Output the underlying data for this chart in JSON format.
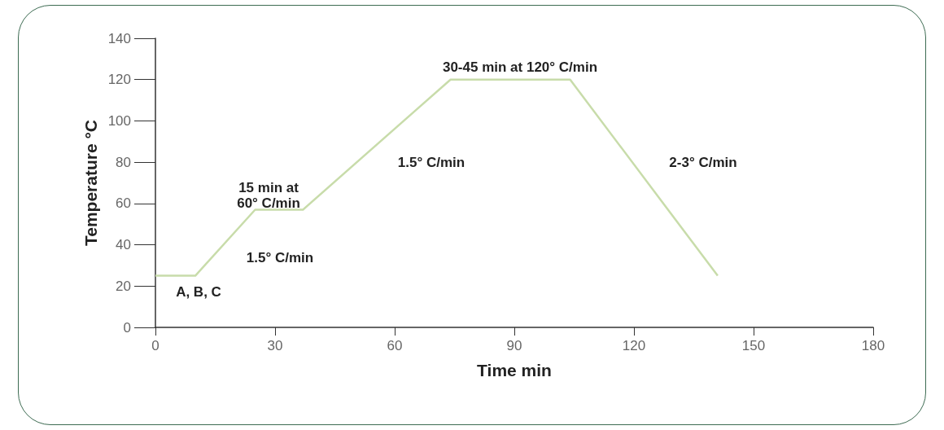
{
  "chart_data": {
    "type": "line",
    "xlabel": "Time min",
    "ylabel": "Temperature °C",
    "x": [
      0,
      10,
      25,
      37,
      74,
      104,
      141
    ],
    "series": [
      {
        "color": "#c8dcaa",
        "values": [
          25,
          25,
          57,
          57,
          120,
          120,
          25
        ]
      }
    ],
    "xlim": [
      0,
      180
    ],
    "xticks": [
      0,
      30,
      60,
      90,
      120,
      150,
      180
    ],
    "ylim": [
      0,
      140
    ],
    "yticks": [
      0,
      20,
      40,
      60,
      80,
      100,
      120,
      140
    ],
    "grid": false,
    "marker": "none",
    "line_style": "solid",
    "annotations": [
      "A, B, C",
      "15 min at\n60° C/min",
      "1.5° C/min",
      "1.5° C/min",
      "30-45 min at 120° C/min",
      "2-3° C/min"
    ]
  }
}
